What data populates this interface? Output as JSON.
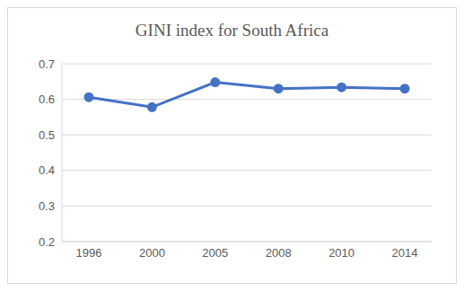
{
  "chart_data": {
    "type": "line",
    "title": "GINI index for South Africa",
    "categories": [
      "1996",
      "2000",
      "2005",
      "2008",
      "2010",
      "2014"
    ],
    "values": [
      0.606,
      0.578,
      0.648,
      0.63,
      0.634,
      0.63
    ],
    "color": "#4472c4",
    "marker": "circle",
    "ylim": [
      0.2,
      0.7
    ],
    "yticks": [
      0.2,
      0.3,
      0.4,
      0.5,
      0.6,
      0.7
    ],
    "grid": true
  }
}
